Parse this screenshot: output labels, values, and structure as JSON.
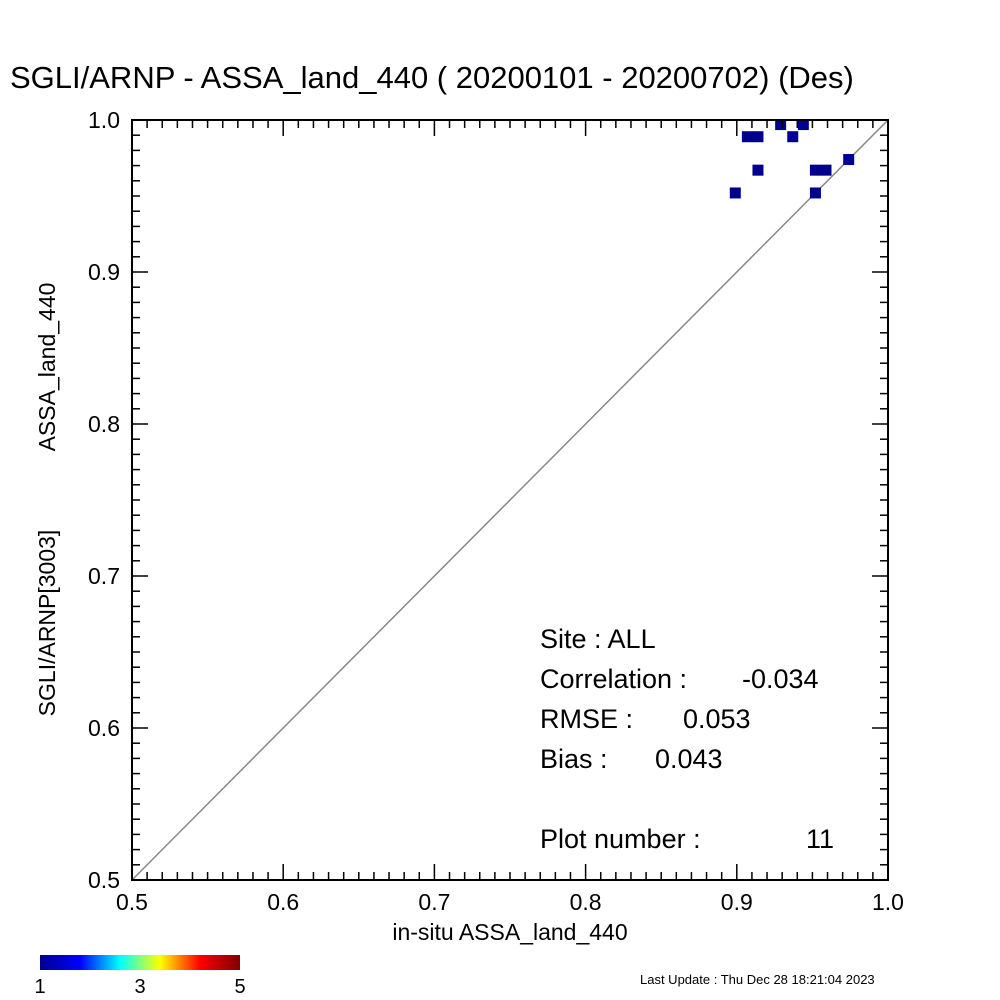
{
  "chart_data": {
    "type": "scatter",
    "title": "SGLI/ARNP - ASSA_land_440 ( 20200101 - 20200702) (Des)",
    "xlabel": "in-situ ASSA_land_440",
    "ylabel_line1": "SGLI/ARNP[3003]",
    "ylabel_line2": "ASSA_land_440",
    "xlim": [
      0.5,
      1.0
    ],
    "ylim": [
      0.5,
      1.0
    ],
    "x_ticks": [
      "0.5",
      "0.6",
      "0.7",
      "0.8",
      "0.9",
      "1.0"
    ],
    "y_ticks": [
      "0.5",
      "0.6",
      "0.7",
      "0.8",
      "0.9",
      "1.0"
    ],
    "reference_line": "1:1",
    "points": [
      {
        "x": 0.929,
        "y": 0.997,
        "count": 1
      },
      {
        "x": 0.944,
        "y": 0.997,
        "count": 1
      },
      {
        "x": 0.907,
        "y": 0.989,
        "count": 1
      },
      {
        "x": 0.914,
        "y": 0.989,
        "count": 1
      },
      {
        "x": 0.937,
        "y": 0.989,
        "count": 1
      },
      {
        "x": 0.974,
        "y": 0.974,
        "count": 1
      },
      {
        "x": 0.914,
        "y": 0.967,
        "count": 1
      },
      {
        "x": 0.952,
        "y": 0.967,
        "count": 1
      },
      {
        "x": 0.959,
        "y": 0.967,
        "count": 1
      },
      {
        "x": 0.899,
        "y": 0.952,
        "count": 1
      },
      {
        "x": 0.952,
        "y": 0.952,
        "count": 1
      }
    ],
    "stats": {
      "site": "Site : ALL",
      "correlation_label": "Correlation :",
      "correlation_value": "-0.034",
      "rmse_label": "RMSE :",
      "rmse_value": "0.053",
      "bias_label": "Bias :",
      "bias_value": "0.043",
      "plot_number_label": "Plot number :",
      "plot_number_value": "11"
    },
    "colorbar": {
      "min": 1,
      "max": 5,
      "ticks": [
        "1",
        "3",
        "5"
      ],
      "colors": [
        "#00008f",
        "#0000ff",
        "#00ffff",
        "#ffff00",
        "#ff0000",
        "#800000"
      ]
    },
    "point_color": "#00008f",
    "line_color": "#888888",
    "last_update": "Last Update : Thu Dec 28 18:21:04 2023"
  }
}
